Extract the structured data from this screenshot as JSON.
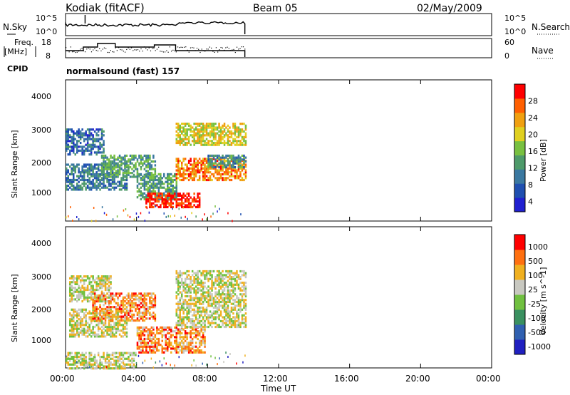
{
  "header": {
    "station": "Kodiak (fitACF)",
    "beam": "Beam 05",
    "date": "02/May/2009"
  },
  "panels": {
    "nsky": {
      "label": "N.Sky",
      "left_ticks": [
        "10^5",
        "10^0"
      ],
      "right_ticks": [
        "10^5",
        "10^0"
      ],
      "right_label": "N.Search"
    },
    "freq": {
      "label_top": "Freq.",
      "label_bottom": "[MHz]",
      "left_ticks": [
        "18",
        "8"
      ],
      "right_ticks": [
        "60",
        "0"
      ],
      "right_label": "Nave"
    },
    "cpid": {
      "label": "CPID",
      "value": "normalsound (fast) 157"
    }
  },
  "power_panel": {
    "ylabel": "Slant Range [km]",
    "yticks": [
      "4000",
      "3000",
      "2000",
      "1000"
    ],
    "colorbar_label": "Power [dB]",
    "colorbar_ticks": [
      "28",
      "24",
      "20",
      "16",
      "12",
      "8",
      "4"
    ],
    "colors": [
      "#2020d0",
      "#1f4fb0",
      "#3a78a0",
      "#4e9a6a",
      "#78c040",
      "#e0d020",
      "#f0a010",
      "#ff5f00",
      "#ff0000"
    ]
  },
  "velocity_panel": {
    "ylabel": "Slant Range [km]",
    "yticks": [
      "4000",
      "3000",
      "2000",
      "1000"
    ],
    "colorbar_label": "Velocity [m s^-1]",
    "colorbar_ticks": [
      "1000",
      "500",
      "100",
      "25",
      "-25",
      "-100",
      "-500",
      "-1000"
    ],
    "colors": [
      "#2020c0",
      "#3060b0",
      "#3a9060",
      "#70c040",
      "#c8c8c0",
      "#f0b020",
      "#ff7010",
      "#ff0000"
    ]
  },
  "xaxis": {
    "label": "Time UT",
    "ticks": [
      "00:00",
      "04:00",
      "08:00",
      "12:00",
      "16:00",
      "20:00",
      "00:00"
    ]
  },
  "chart_data": {
    "type": "heatmap",
    "title": "Kodiak (fitACF)",
    "subtitle": "Beam 05",
    "xlabel": "Time UT",
    "ylabel": "Slant Range [km]",
    "xlim_hours": [
      0,
      24
    ],
    "ylim_km": [
      180,
      4600
    ],
    "data_end_hours": 10.1,
    "power_db_range": [
      0,
      32
    ],
    "velocity_range": [
      -1200,
      1200
    ],
    "power_regions": [
      {
        "t0": 0.0,
        "t1": 2.2,
        "r0": 2300,
        "r1": 3100,
        "level": 1.5
      },
      {
        "t0": 0.0,
        "t1": 3.5,
        "r0": 1200,
        "r1": 2000,
        "level": 2.0
      },
      {
        "t0": 2.0,
        "t1": 5.0,
        "r0": 1600,
        "r1": 2300,
        "level": 3.0
      },
      {
        "t0": 4.0,
        "t1": 6.2,
        "r0": 900,
        "r1": 1700,
        "level": 3.0
      },
      {
        "t0": 4.5,
        "t1": 7.5,
        "r0": 650,
        "r1": 1100,
        "level": 8.0
      },
      {
        "t0": 6.2,
        "t1": 10.1,
        "r0": 1500,
        "r1": 2200,
        "level": 6.5
      },
      {
        "t0": 6.2,
        "t1": 10.1,
        "r0": 2600,
        "r1": 3300,
        "level": 5.0
      },
      {
        "t0": 8.0,
        "t1": 10.1,
        "r0": 1900,
        "r1": 2300,
        "level": 2.5
      }
    ],
    "velocity_regions": [
      {
        "t0": 0.2,
        "t1": 3.5,
        "r0": 1200,
        "r1": 2100,
        "level": 4.0
      },
      {
        "t0": 0.2,
        "t1": 2.6,
        "r0": 2300,
        "r1": 3100,
        "level": 4.0
      },
      {
        "t0": 1.5,
        "t1": 5.0,
        "r0": 1700,
        "r1": 2600,
        "level": 5.5
      },
      {
        "t0": 4.0,
        "t1": 7.8,
        "r0": 700,
        "r1": 1500,
        "level": 5.5
      },
      {
        "t0": 6.2,
        "t1": 10.1,
        "r0": 1500,
        "r1": 3300,
        "level": 4.0
      },
      {
        "t0": 0.0,
        "t1": 4.0,
        "r0": 200,
        "r1": 700,
        "level": 4.0
      }
    ]
  }
}
